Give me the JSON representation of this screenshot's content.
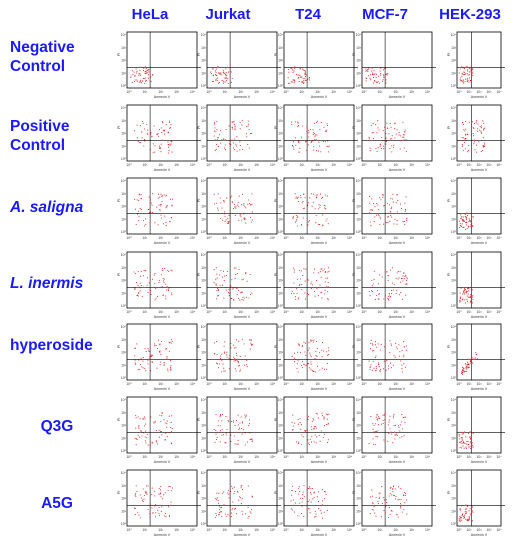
{
  "figure": {
    "columns": [
      "HeLa",
      "Jurkat",
      "T24",
      "MCF-7",
      "HEK-293"
    ],
    "rows": [
      {
        "label_line1": "Negative",
        "label_line2": "Control",
        "italic": false
      },
      {
        "label_line1": "Positive",
        "label_line2": "Control",
        "italic": false
      },
      {
        "label_line1": "A. saligna",
        "label_line2": "",
        "italic": true
      },
      {
        "label_line1": "L. inermis",
        "label_line2": "",
        "italic": true
      },
      {
        "label_line1": "hyperoside",
        "label_line2": "",
        "italic": false
      },
      {
        "label_line1": "Q3G",
        "label_line2": "",
        "italic": false
      },
      {
        "label_line1": "A5G",
        "label_line2": "",
        "italic": false
      }
    ],
    "panel_axis": {
      "xlabel": "Annexin V",
      "ylabel": "PI",
      "tick_labels": [
        "10⁰",
        "10¹",
        "10²",
        "10³",
        "10⁴"
      ]
    },
    "colors": {
      "label_text": "#1a1aff",
      "dots": "#e02020",
      "frame": "#000000",
      "quadrant_lines": "#000000"
    },
    "distributions": [
      [
        "tight-low-left",
        "tight-low-left",
        "tight-low-left",
        "tight-low-left",
        "tight-low-left"
      ],
      [
        "spread",
        "spread",
        "spread",
        "spread",
        "spread"
      ],
      [
        "spread",
        "spread",
        "spread",
        "spread",
        "tight-low-left"
      ],
      [
        "spread",
        "spread",
        "spread",
        "spread",
        "tight-low-left"
      ],
      [
        "spread",
        "spread",
        "spread",
        "spread",
        "diagonal-low-left"
      ],
      [
        "spread",
        "spread",
        "spread",
        "spread",
        "tight-low-left"
      ],
      [
        "spread",
        "spread",
        "spread",
        "spread",
        "tight-low-left"
      ]
    ]
  }
}
